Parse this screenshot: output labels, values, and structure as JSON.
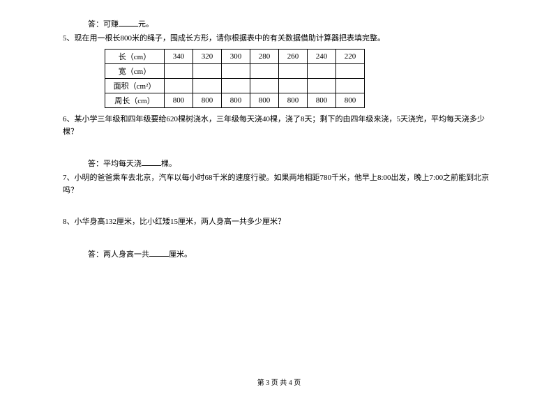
{
  "q4_answer_prefix": "答：可赚",
  "q4_answer_suffix": "元。",
  "q5": {
    "text": "5、现在用一根长800米的绳子，围成长方形，请你根据表中的有关数据借助计算器把表填完整。",
    "rows": {
      "length_label": "长（cm）",
      "width_label": "宽（cm）",
      "area_label": "面积（cm²）",
      "perimeter_label": "周长（cm）"
    },
    "length_vals": [
      "340",
      "320",
      "300",
      "280",
      "260",
      "240",
      "220"
    ],
    "width_vals": [
      "",
      "",
      "",
      "",
      "",
      "",
      ""
    ],
    "area_vals": [
      "",
      "",
      "",
      "",
      "",
      "",
      ""
    ],
    "perimeter_vals": [
      "800",
      "800",
      "800",
      "800",
      "800",
      "800",
      "800"
    ]
  },
  "q6": {
    "text": "6、某小学三年级和四年级要给620棵树浇水，三年级每天浇40棵，浇了8天；剩下的由四年级来浇，5天浇完，平均每天浇多少棵？",
    "answer_prefix": "答：平均每天浇",
    "answer_suffix": "棵。"
  },
  "q7": {
    "text": "7、小明的爸爸乘车去北京，汽车以每小时68千米的速度行驶。如果两地相距780千米，他早上8:00出发，晚上7:00之前能到北京吗？"
  },
  "q8": {
    "text": "8、小华身高132厘米，比小红矮15厘米，两人身高一共多少厘米？",
    "answer_prefix": "答：两人身高一共",
    "answer_suffix": "厘米。"
  },
  "footer": "第 3 页 共 4 页"
}
